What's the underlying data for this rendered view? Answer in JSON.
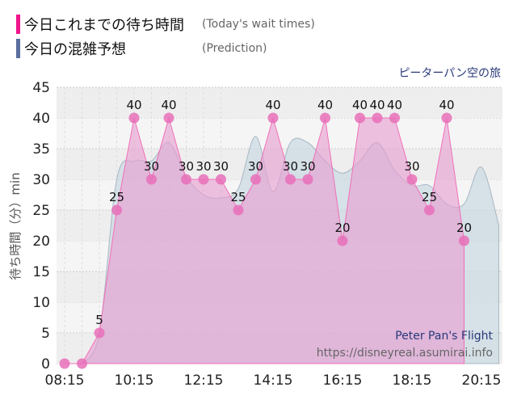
{
  "legend": [
    {
      "ja": "今日これまでの待ち時間",
      "en": "(Today's wait times)",
      "color": "#f0168c"
    },
    {
      "ja": "今日の混雑予想",
      "en": "(Prediction)",
      "color": "#5a6fa0"
    }
  ],
  "ride_ja": "ピーターパン空の旅",
  "ride_en": "Peter Pan's Flight",
  "site": "https://disneyreal.asumirai.info",
  "chart_data": {
    "type": "area",
    "ylabel": "待ち時間（分）min",
    "ylim": [
      0,
      45
    ],
    "yticks": [
      0,
      5,
      10,
      15,
      20,
      25,
      30,
      35,
      40,
      45
    ],
    "xticks": [
      "08:15",
      "10:15",
      "12:15",
      "14:15",
      "16:15",
      "18:15",
      "20:15"
    ],
    "x_minutes_range": [
      480,
      750
    ],
    "actual": {
      "name": "Today's wait times",
      "x": [
        "08:15",
        "08:45",
        "09:15",
        "09:45",
        "10:15",
        "10:45",
        "11:15",
        "11:45",
        "12:15",
        "12:45",
        "13:15",
        "13:45",
        "14:15",
        "14:45",
        "15:15",
        "15:45",
        "16:15",
        "16:45",
        "17:15",
        "17:45",
        "18:15",
        "18:45",
        "19:15",
        "19:45"
      ],
      "values": [
        0,
        0,
        5,
        25,
        40,
        30,
        40,
        30,
        30,
        30,
        25,
        30,
        40,
        30,
        30,
        40,
        20,
        40,
        40,
        40,
        30,
        25,
        40,
        20
      ]
    },
    "prediction": {
      "name": "Prediction",
      "x": [
        "08:45",
        "09:15",
        "09:45",
        "10:15",
        "10:45",
        "11:15",
        "11:45",
        "12:15",
        "12:45",
        "13:15",
        "13:45",
        "14:15",
        "14:45",
        "15:15",
        "15:45",
        "16:15",
        "16:45",
        "17:15",
        "17:45",
        "18:15",
        "18:45",
        "19:15",
        "19:45",
        "20:15",
        "20:45"
      ],
      "values": [
        0,
        5,
        30,
        33,
        33,
        36,
        30.5,
        27.5,
        27,
        28.5,
        37,
        28,
        36,
        36,
        33,
        31,
        33,
        36,
        31.5,
        29,
        29,
        26,
        26,
        32,
        22.5
      ]
    }
  }
}
